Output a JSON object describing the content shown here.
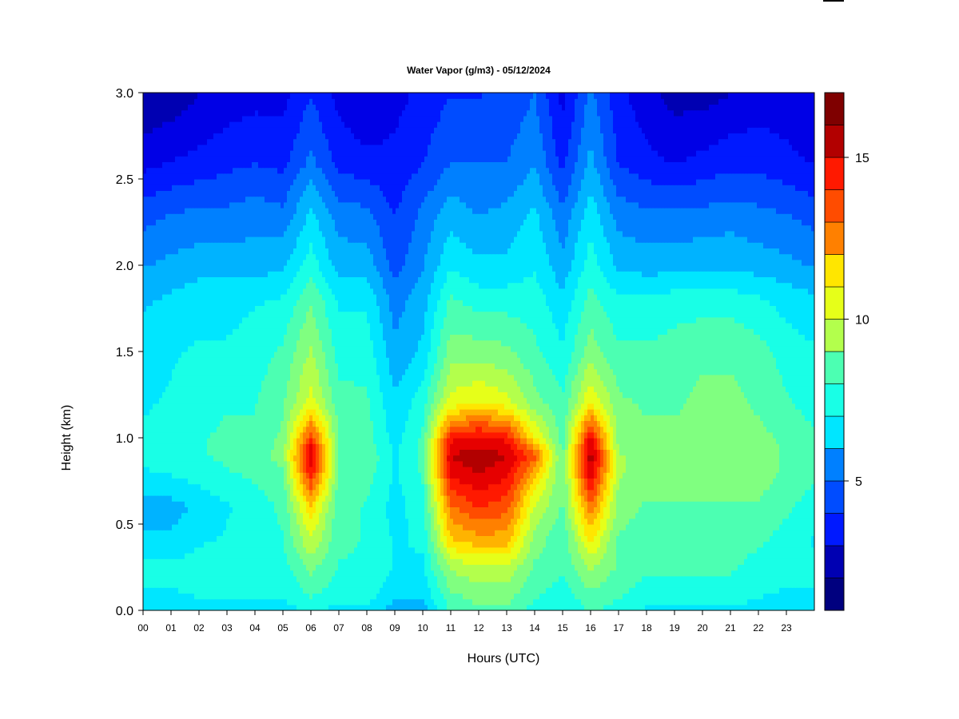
{
  "chart_data": {
    "type": "heatmap",
    "title": "Water Vapor (g/m3) - 05/12/2024",
    "xlabel": "Hours (UTC)",
    "ylabel": "Height (km)",
    "xlim": [
      0,
      24
    ],
    "ylim": [
      0,
      3
    ],
    "x_ticks": [
      "00",
      "01",
      "02",
      "03",
      "04",
      "05",
      "06",
      "07",
      "08",
      "09",
      "10",
      "11",
      "12",
      "13",
      "14",
      "15",
      "16",
      "17",
      "18",
      "19",
      "20",
      "21",
      "22",
      "23"
    ],
    "y_ticks": [
      "0.0",
      "0.5",
      "1.0",
      "1.5",
      "2.0",
      "2.5",
      "3.0"
    ],
    "colorbar": {
      "range": [
        1,
        17
      ],
      "ticks": [
        "5",
        "10",
        "15"
      ],
      "levels": [
        1,
        2,
        3,
        4,
        5,
        6,
        7,
        8,
        9,
        10,
        11,
        12,
        13,
        14,
        15,
        16,
        17
      ],
      "colors": [
        "#00007f",
        "#0000b2",
        "#0000e6",
        "#0019ff",
        "#004cff",
        "#0080ff",
        "#00b3ff",
        "#00e6ff",
        "#19ffe6",
        "#4cffb2",
        "#80ff80",
        "#b3ff4c",
        "#e6ff19",
        "#ffe600",
        "#ffb300",
        "#ff8000",
        "#ff4c00",
        "#ff1900",
        "#e60000",
        "#b20000",
        "#7f0000"
      ]
    },
    "hours": [
      0,
      1,
      2,
      3,
      4,
      5,
      6,
      7,
      8,
      9,
      10,
      11,
      12,
      13,
      14,
      15,
      16,
      17,
      18,
      19,
      20,
      21,
      22,
      23,
      24
    ],
    "heights": [
      0.0,
      0.1,
      0.25,
      0.4,
      0.6,
      0.8,
      0.9,
      1.0,
      1.2,
      1.5,
      1.8,
      2.0,
      2.3,
      2.6,
      3.0
    ],
    "values": [
      [
        6.5,
        6.5,
        6.8,
        6.8,
        6.8,
        6.8,
        7.2,
        6.8,
        6.8,
        6.0,
        6.0,
        8.0,
        8.5,
        8.5,
        7.5,
        7.0,
        8.0,
        7.5,
        7.0,
        7.0,
        7.0,
        7.0,
        6.8,
        6.5,
        6.5
      ],
      [
        7.0,
        7.0,
        7.2,
        7.2,
        7.2,
        7.2,
        8.0,
        7.5,
        7.5,
        6.5,
        6.5,
        8.5,
        9.0,
        9.0,
        8.0,
        7.5,
        8.5,
        8.0,
        7.5,
        7.5,
        7.5,
        7.5,
        7.2,
        7.0,
        7.0
      ],
      [
        7.3,
        7.3,
        7.5,
        7.5,
        7.5,
        7.5,
        8.8,
        7.8,
        7.8,
        7.0,
        7.0,
        9.5,
        10.0,
        10.0,
        8.5,
        8.0,
        9.5,
        8.5,
        8.0,
        8.0,
        8.0,
        8.0,
        7.5,
        7.3,
        7.3
      ],
      [
        6.5,
        6.5,
        7.0,
        7.2,
        7.5,
        7.8,
        10.0,
        8.0,
        7.8,
        7.0,
        7.2,
        11.5,
        12.0,
        12.0,
        9.0,
        8.0,
        11.0,
        8.5,
        8.2,
        8.0,
        8.0,
        8.2,
        8.0,
        7.5,
        7.0
      ],
      [
        6.0,
        6.0,
        6.5,
        7.0,
        7.5,
        8.0,
        11.5,
        8.0,
        7.8,
        6.8,
        7.5,
        13.0,
        14.0,
        13.5,
        10.0,
        8.5,
        13.0,
        9.0,
        8.5,
        8.5,
        8.5,
        8.5,
        8.5,
        8.0,
        7.5
      ],
      [
        7.0,
        7.2,
        7.5,
        7.8,
        8.0,
        8.5,
        14.5,
        8.5,
        8.2,
        7.0,
        8.0,
        15.0,
        15.5,
        15.0,
        12.0,
        8.5,
        15.5,
        9.5,
        9.0,
        9.0,
        9.0,
        9.0,
        9.0,
        8.5,
        8.0
      ],
      [
        7.2,
        7.5,
        7.8,
        8.0,
        8.2,
        9.0,
        15.5,
        8.5,
        8.5,
        7.0,
        8.0,
        15.5,
        16.0,
        15.5,
        13.5,
        8.5,
        16.0,
        9.5,
        9.0,
        9.0,
        9.0,
        9.0,
        9.0,
        8.5,
        8.0
      ],
      [
        7.2,
        7.5,
        7.8,
        8.0,
        8.0,
        8.8,
        14.0,
        8.5,
        8.2,
        6.8,
        8.0,
        14.5,
        15.0,
        14.5,
        11.0,
        8.2,
        15.0,
        9.0,
        8.8,
        8.8,
        9.0,
        9.0,
        8.8,
        8.5,
        8.0
      ],
      [
        7.0,
        7.2,
        7.5,
        7.8,
        7.8,
        8.5,
        10.5,
        8.2,
        8.0,
        6.5,
        7.5,
        10.5,
        11.0,
        10.5,
        9.0,
        8.0,
        11.0,
        8.8,
        8.5,
        8.5,
        8.8,
        8.8,
        8.5,
        8.0,
        7.5
      ],
      [
        6.8,
        7.0,
        7.2,
        7.2,
        7.5,
        8.0,
        9.5,
        7.5,
        7.5,
        5.8,
        6.5,
        9.0,
        9.0,
        8.8,
        8.0,
        7.2,
        9.0,
        8.0,
        8.0,
        8.2,
        8.5,
        8.5,
        8.2,
        7.5,
        7.2
      ],
      [
        6.2,
        6.5,
        6.8,
        6.8,
        7.0,
        7.2,
        8.5,
        7.0,
        7.0,
        5.2,
        6.0,
        8.0,
        7.5,
        7.5,
        7.5,
        6.5,
        8.2,
        7.2,
        7.2,
        7.5,
        7.5,
        7.5,
        7.2,
        6.8,
        6.5
      ],
      [
        5.5,
        5.8,
        6.0,
        6.0,
        6.0,
        6.2,
        7.5,
        6.0,
        6.0,
        4.5,
        5.5,
        7.0,
        6.5,
        6.5,
        7.0,
        5.8,
        7.5,
        6.2,
        6.0,
        6.0,
        6.2,
        6.2,
        6.0,
        5.8,
        5.5
      ],
      [
        4.5,
        4.8,
        5.0,
        5.0,
        5.2,
        5.0,
        6.5,
        5.2,
        5.0,
        4.0,
        5.0,
        6.0,
        5.5,
        5.8,
        6.5,
        5.0,
        6.8,
        5.2,
        5.0,
        5.0,
        5.0,
        5.2,
        5.0,
        4.8,
        4.5
      ],
      [
        3.0,
        3.3,
        3.5,
        3.8,
        4.0,
        3.8,
        5.0,
        3.8,
        3.5,
        3.5,
        4.0,
        4.8,
        4.8,
        4.8,
        5.5,
        3.8,
        5.8,
        4.0,
        3.5,
        3.2,
        3.5,
        3.8,
        3.8,
        3.5,
        3.2
      ],
      [
        1.8,
        2.0,
        2.5,
        2.8,
        3.0,
        3.0,
        4.0,
        3.0,
        2.5,
        3.0,
        3.5,
        4.0,
        4.0,
        4.2,
        4.8,
        3.0,
        5.0,
        3.5,
        2.8,
        2.2,
        2.2,
        2.5,
        2.8,
        2.8,
        2.5
      ]
    ]
  }
}
